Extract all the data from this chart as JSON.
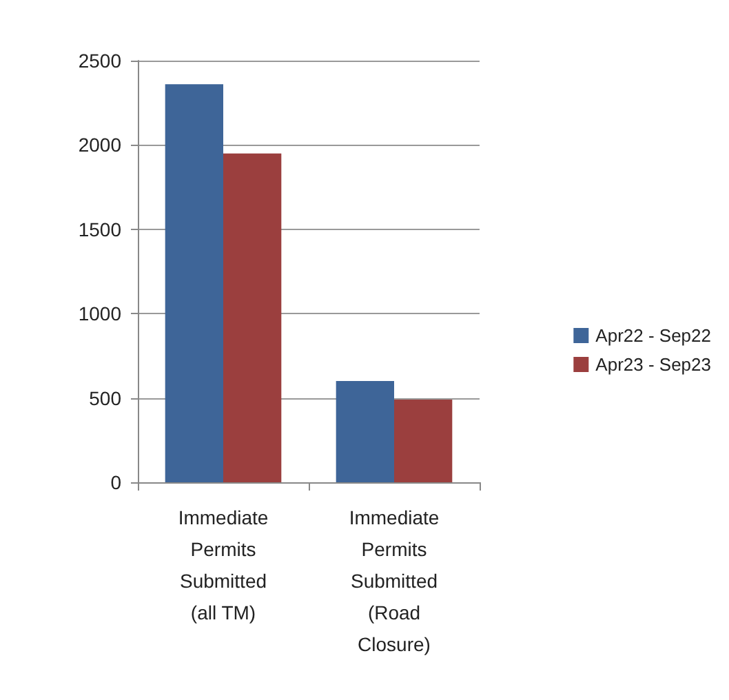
{
  "chart_data": {
    "type": "bar",
    "categories": [
      "Immediate\nPermits\nSubmitted\n(all TM)",
      "Immediate\nPermits\nSubmitted\n(Road\nClosure)"
    ],
    "series": [
      {
        "name": "Apr22 - Sep22",
        "color": "#3e6598",
        "values": [
          2360,
          600
        ]
      },
      {
        "name": "Apr23 - Sep23",
        "color": "#9b3f3e",
        "values": [
          1950,
          490
        ]
      }
    ],
    "ylim": [
      0,
      2500
    ],
    "yticks": [
      0,
      500,
      1000,
      1500,
      2000,
      2500
    ],
    "grid": "y",
    "legend": "right"
  }
}
